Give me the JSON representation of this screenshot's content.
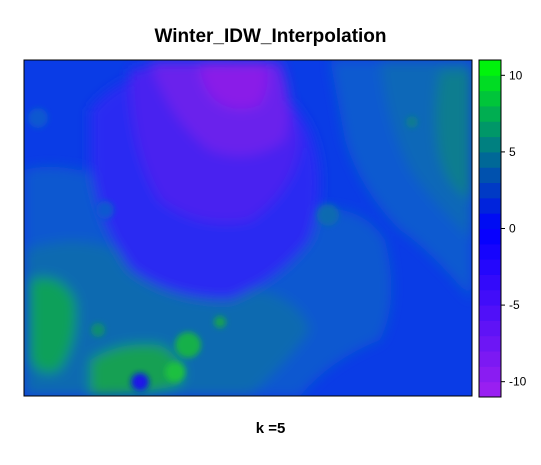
{
  "chart_data": {
    "type": "heatmap",
    "title": "Winter_IDW_Interpolation",
    "xlabel": "",
    "ylabel": "",
    "subtitle_label": "k =5",
    "colorbar": {
      "min": -11,
      "max": 11,
      "step": 1,
      "ticks": [
        10,
        5,
        0,
        -5,
        -10
      ],
      "tick_labels": [
        "10",
        "5",
        "0",
        "-5",
        "-10"
      ],
      "low_color": "#a020f0",
      "mid_color": "#0000ff",
      "high_color": "#00ff00"
    },
    "field_description": "interpolated surface: low values (about -8 to -4) in the upper-central region, values near 0 across the middle, moderate highs (about 3 to 7) to the right and lower-left, one local low near the bottom-centre"
  }
}
